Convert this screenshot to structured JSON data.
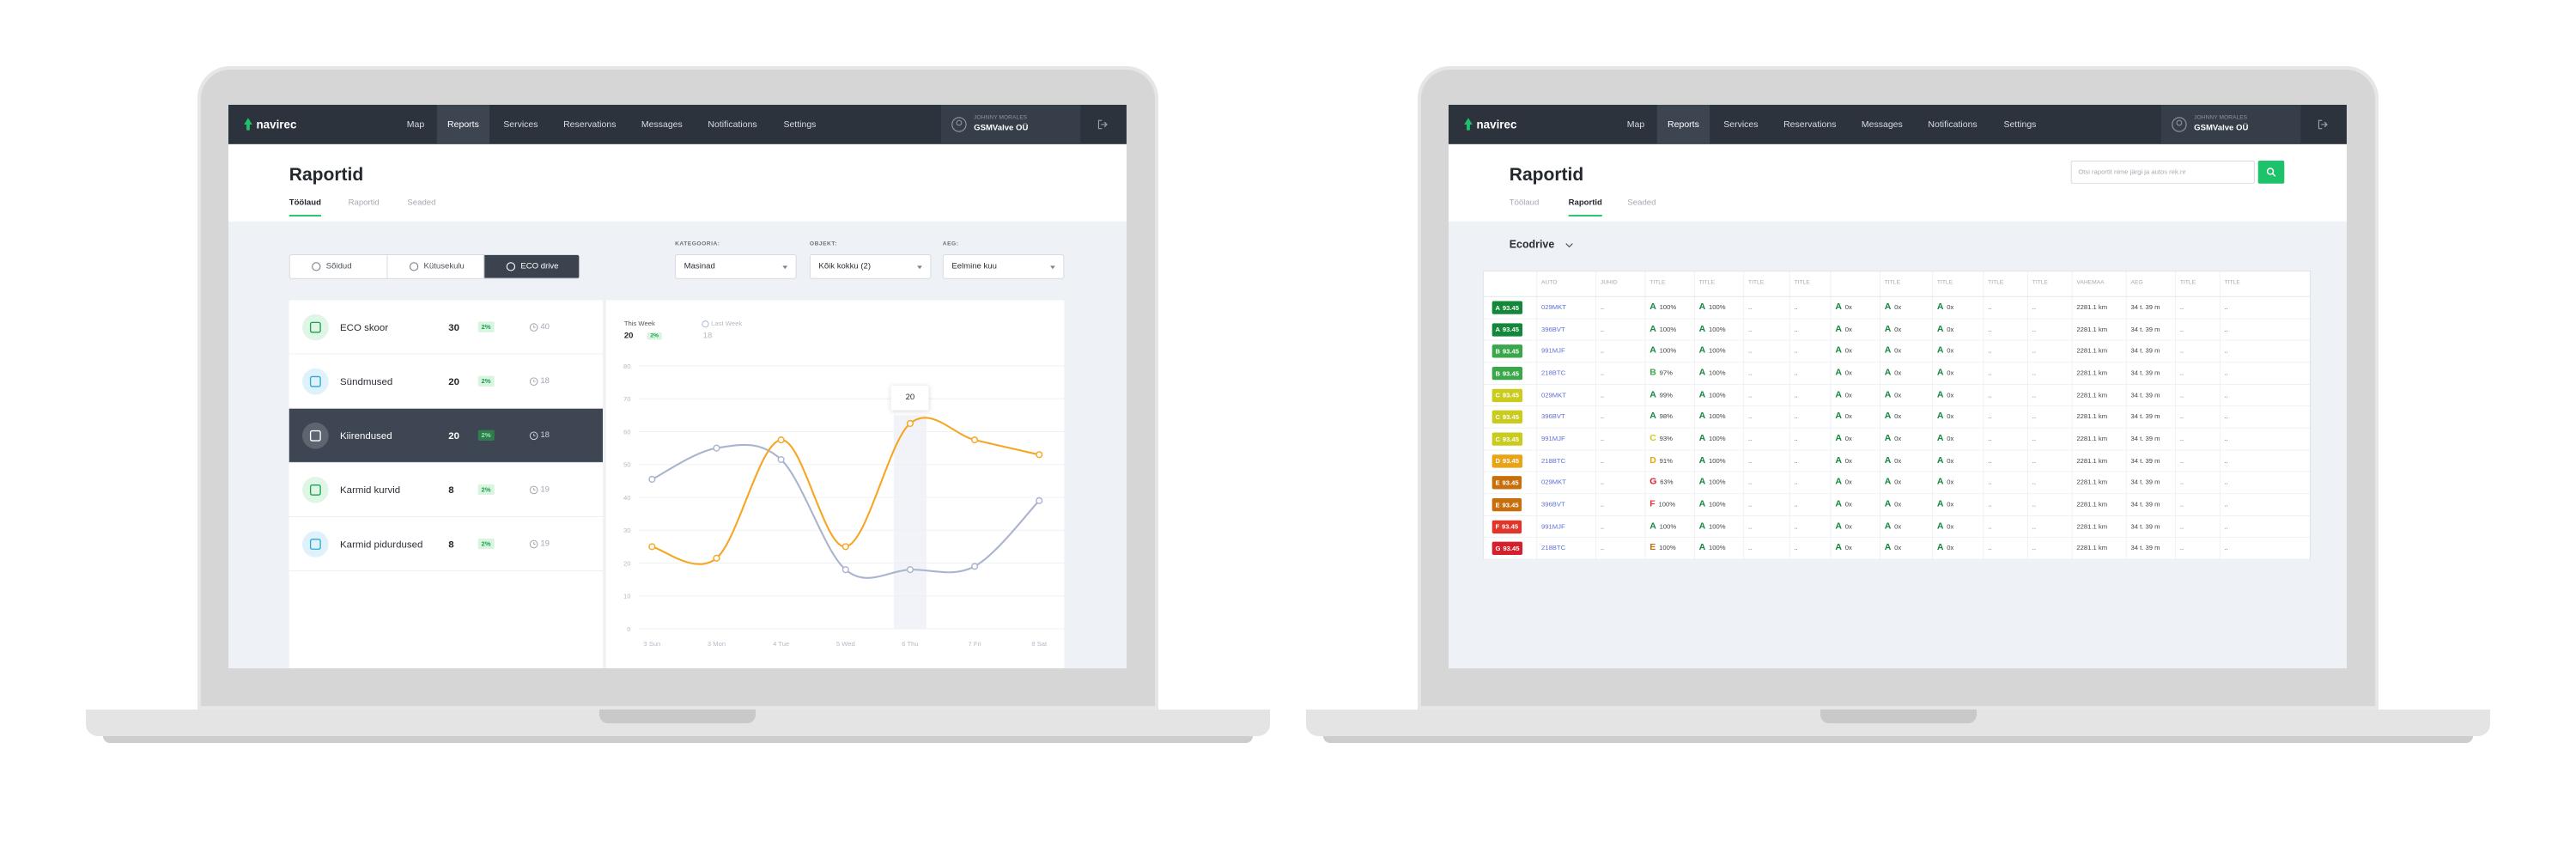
{
  "nav": {
    "brand": "navirec",
    "items": [
      "Map",
      "Reports",
      "Services",
      "Reservations",
      "Messages",
      "Notifications",
      "Settings"
    ],
    "active": 1,
    "user_role": "JOHNNY MORALES",
    "company": "GSMValve OÜ"
  },
  "page": {
    "title": "Raportid",
    "tabs": [
      "Töölaud",
      "Raportid",
      "Seaded"
    ]
  },
  "dashboard": {
    "active_tab": 0,
    "modes": [
      "Sõidud",
      "Kütusekulu",
      "ECO drive"
    ],
    "active_mode": 2,
    "filters": [
      {
        "label": "KATEGOORIA:",
        "value": "Masinad"
      },
      {
        "label": "OBJEKT:",
        "value": "Kõik kokku (2)"
      },
      {
        "label": "AEG:",
        "value": "Eelmine kuu"
      }
    ],
    "metrics": [
      {
        "name": "ECO skoor",
        "value": 30,
        "change": "2%",
        "previous": 40
      },
      {
        "name": "Sündmused",
        "value": 20,
        "change": "2%",
        "previous": 18
      },
      {
        "name": "Kiirendused",
        "value": 20,
        "change": "2%",
        "previous": 18
      },
      {
        "name": "Karmid kurvid",
        "value": 8,
        "change": "2%",
        "previous": 19
      },
      {
        "name": "Karmid pidurdused",
        "value": 8,
        "change": "2%",
        "previous": 19
      }
    ],
    "active_metric": 2
  },
  "chart_data": {
    "type": "line",
    "categories": [
      "3 Sun",
      "3 Mon",
      "4 Tue",
      "5 Wed",
      "6 Thu",
      "7 Fri",
      "8 Sat"
    ],
    "series": [
      {
        "name": "This Week",
        "color": "#f5a623",
        "values": [
          25,
          21.5,
          57.5,
          25,
          62.5,
          57.5,
          53
        ],
        "current": 20,
        "change": "2%"
      },
      {
        "name": "Last Week",
        "color": "#aab4cf",
        "values": [
          45.5,
          55,
          51.5,
          18,
          18,
          19,
          39
        ],
        "current": 18
      }
    ],
    "ylim": [
      0,
      80
    ],
    "yticks": [
      0,
      10,
      20,
      30,
      40,
      50,
      60,
      70,
      80
    ],
    "grid": true,
    "tooltip": {
      "category": 4,
      "label": "20"
    }
  },
  "reports": {
    "active_tab": 1,
    "report_name": "Ecodrive",
    "search_placeholder": "Otsi raportit nime järgi ja autos rek.nr",
    "grade_colors": {
      "A": "#13873a",
      "B": "#3aa84a",
      "C": "#c9cc1c",
      "D": "#e8a317",
      "E": "#c76f0d",
      "F": "#e0352b",
      "G": "#d61f2c"
    },
    "table": {
      "headers": [
        null,
        "AUTO",
        "JUHID",
        "TITLE",
        "TITLE",
        "TITLE",
        "TITLE",
        null,
        "TITLE",
        "TITLE",
        "TITLE",
        "TITLE",
        "VAHEMAA",
        "AEG",
        "TITLE",
        "TITLE"
      ],
      "rows": [
        {
          "grade": "A",
          "score": 93.45,
          "auto": "029MKT",
          "cells": [
            "..",
            {
              "grade": "A",
              "text": "100%"
            },
            {
              "grade": "A",
              "text": "100%"
            },
            "..",
            "..",
            {
              "grade": "A",
              "text": "0x"
            },
            {
              "grade": "A",
              "text": "0x"
            },
            {
              "grade": "A",
              "text": "0x"
            },
            "..",
            "..",
            "2281.1 km",
            "34 t. 39 m",
            "..",
            ".."
          ]
        },
        {
          "grade": "A",
          "score": 93.45,
          "auto": "396BVT",
          "cells": [
            "..",
            {
              "grade": "A",
              "text": "100%"
            },
            {
              "grade": "A",
              "text": "100%"
            },
            "..",
            "..",
            {
              "grade": "A",
              "text": "0x"
            },
            {
              "grade": "A",
              "text": "0x"
            },
            {
              "grade": "A",
              "text": "0x"
            },
            "..",
            "..",
            "2281.1 km",
            "34 t. 39 m",
            "..",
            ".."
          ]
        },
        {
          "grade": "B",
          "score": 93.45,
          "auto": "991MJF",
          "cells": [
            "..",
            {
              "grade": "A",
              "text": "100%"
            },
            {
              "grade": "A",
              "text": "100%"
            },
            "..",
            "..",
            {
              "grade": "A",
              "text": "0x"
            },
            {
              "grade": "A",
              "text": "0x"
            },
            {
              "grade": "A",
              "text": "0x"
            },
            "..",
            "..",
            "2281.1 km",
            "34 t. 39 m",
            "..",
            ".."
          ]
        },
        {
          "grade": "B",
          "score": 93.45,
          "auto": "218BTC",
          "cells": [
            "..",
            {
              "grade": "B",
              "text": "97%"
            },
            {
              "grade": "A",
              "text": "100%"
            },
            "..",
            "..",
            {
              "grade": "A",
              "text": "0x"
            },
            {
              "grade": "A",
              "text": "0x"
            },
            {
              "grade": "A",
              "text": "0x"
            },
            "..",
            "..",
            "2281.1 km",
            "34 t. 39 m",
            "..",
            ".."
          ]
        },
        {
          "grade": "C",
          "score": 93.45,
          "auto": "029MKT",
          "cells": [
            "..",
            {
              "grade": "A",
              "text": "99%"
            },
            {
              "grade": "A",
              "text": "100%"
            },
            "..",
            "..",
            {
              "grade": "A",
              "text": "0x"
            },
            {
              "grade": "A",
              "text": "0x"
            },
            {
              "grade": "A",
              "text": "0x"
            },
            "..",
            "..",
            "2281.1 km",
            "34 t. 39 m",
            "..",
            ".."
          ]
        },
        {
          "grade": "C",
          "score": 93.45,
          "auto": "396BVT",
          "cells": [
            "..",
            {
              "grade": "A",
              "text": "98%"
            },
            {
              "grade": "A",
              "text": "100%"
            },
            "..",
            "..",
            {
              "grade": "A",
              "text": "0x"
            },
            {
              "grade": "A",
              "text": "0x"
            },
            {
              "grade": "A",
              "text": "0x"
            },
            "..",
            "..",
            "2281.1 km",
            "34 t. 39 m",
            "..",
            ".."
          ]
        },
        {
          "grade": "C",
          "score": 93.45,
          "auto": "991MJF",
          "cells": [
            "..",
            {
              "grade": "C",
              "text": "93%"
            },
            {
              "grade": "A",
              "text": "100%"
            },
            "..",
            "..",
            {
              "grade": "A",
              "text": "0x"
            },
            {
              "grade": "A",
              "text": "0x"
            },
            {
              "grade": "A",
              "text": "0x"
            },
            "..",
            "..",
            "2281.1 km",
            "34 t. 39 m",
            "..",
            ".."
          ]
        },
        {
          "grade": "D",
          "score": 93.45,
          "auto": "218BTC",
          "cells": [
            "..",
            {
              "grade": "D",
              "text": "91%"
            },
            {
              "grade": "A",
              "text": "100%"
            },
            "..",
            "..",
            {
              "grade": "A",
              "text": "0x"
            },
            {
              "grade": "A",
              "text": "0x"
            },
            {
              "grade": "A",
              "text": "0x"
            },
            "..",
            "..",
            "2281.1 km",
            "34 t. 39 m",
            "..",
            ".."
          ]
        },
        {
          "grade": "E",
          "score": 93.45,
          "auto": "029MKT",
          "cells": [
            "..",
            {
              "grade": "G",
              "text": "63%"
            },
            {
              "grade": "A",
              "text": "100%"
            },
            "..",
            "..",
            {
              "grade": "A",
              "text": "0x"
            },
            {
              "grade": "A",
              "text": "0x"
            },
            {
              "grade": "A",
              "text": "0x"
            },
            "..",
            "..",
            "2281.1 km",
            "34 t. 39 m",
            "..",
            ".."
          ]
        },
        {
          "grade": "E",
          "score": 93.45,
          "auto": "396BVT",
          "cells": [
            "..",
            {
              "grade": "F",
              "text": "100%"
            },
            {
              "grade": "A",
              "text": "100%"
            },
            "..",
            "..",
            {
              "grade": "A",
              "text": "0x"
            },
            {
              "grade": "A",
              "text": "0x"
            },
            {
              "grade": "A",
              "text": "0x"
            },
            "..",
            "..",
            "2281.1 km",
            "34 t. 39 m",
            "..",
            ".."
          ]
        },
        {
          "grade": "F",
          "score": 93.45,
          "auto": "991MJF",
          "cells": [
            "..",
            {
              "grade": "A",
              "text": "100%"
            },
            {
              "grade": "A",
              "text": "100%"
            },
            "..",
            "..",
            {
              "grade": "A",
              "text": "0x"
            },
            {
              "grade": "A",
              "text": "0x"
            },
            {
              "grade": "A",
              "text": "0x"
            },
            "..",
            "..",
            "2281.1 km",
            "34 t. 39 m",
            "..",
            ".."
          ]
        },
        {
          "grade": "G",
          "score": 93.45,
          "auto": "218BTC",
          "cells": [
            "..",
            {
              "grade": "E",
              "text": "100%"
            },
            {
              "grade": "A",
              "text": "100%"
            },
            "..",
            "..",
            {
              "grade": "A",
              "text": "0x"
            },
            {
              "grade": "A",
              "text": "0x"
            },
            {
              "grade": "A",
              "text": "0x"
            },
            "..",
            "..",
            "2281.1 km",
            "34 t. 39 m",
            "..",
            ".."
          ]
        }
      ]
    }
  }
}
